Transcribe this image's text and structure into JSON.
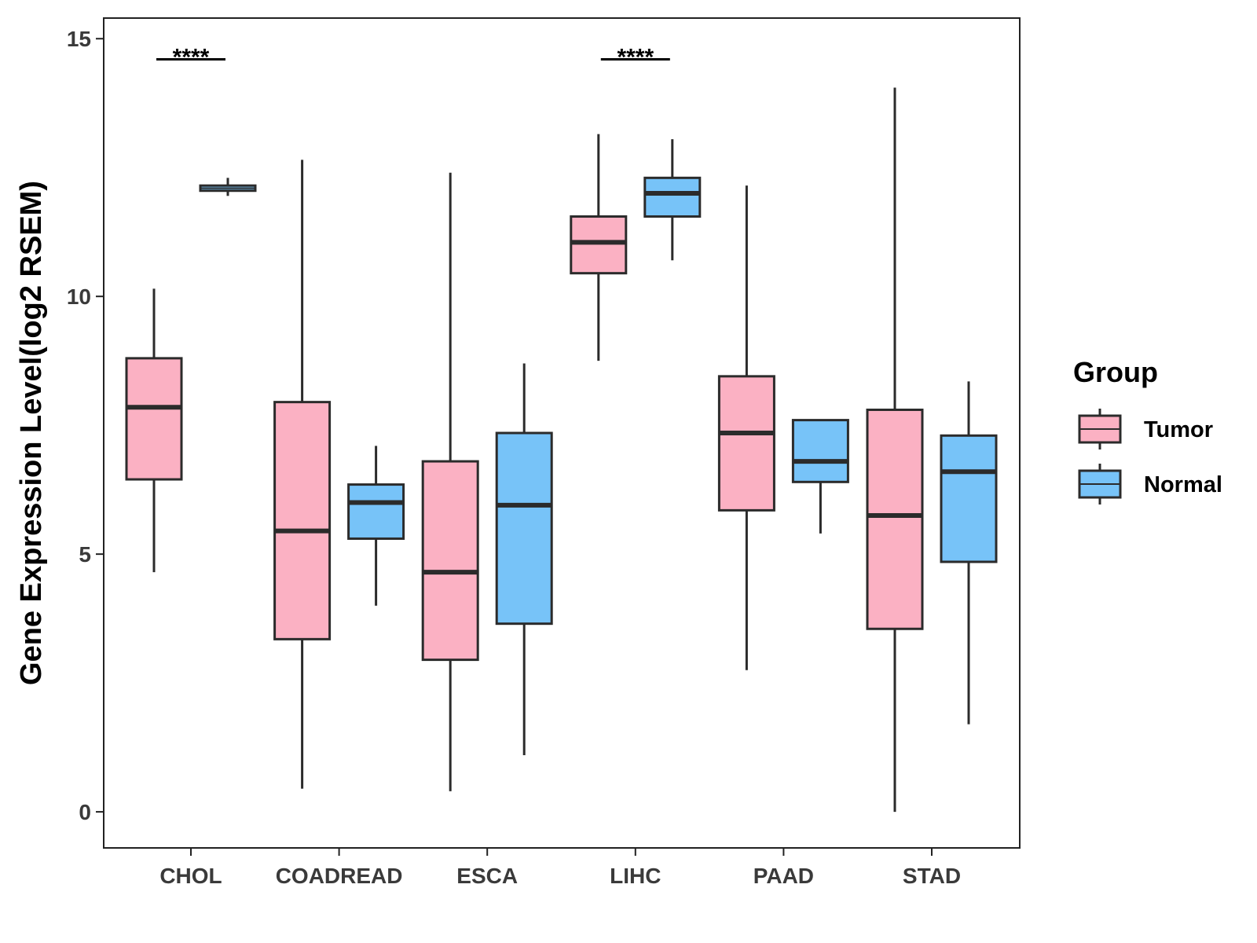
{
  "chart_data": {
    "type": "boxplot",
    "title": "",
    "xlabel": "",
    "ylabel": "Gene Expression Level(log2 RSEM)",
    "ylim": [
      -0.7,
      15.4
    ],
    "yticks": [
      0,
      5,
      10,
      15
    ],
    "grid": false,
    "legend": {
      "title": "Group",
      "placement": "right",
      "entries": [
        "Tumor",
        "Normal"
      ]
    },
    "colors": {
      "Tumor": "#fbb1c3",
      "Normal": "#77c3f8",
      "outline": "#2b2b2b"
    },
    "categories": [
      "CHOL",
      "COADREAD",
      "ESCA",
      "LIHC",
      "PAAD",
      "STAD"
    ],
    "series": [
      {
        "name": "Tumor",
        "boxes": [
          {
            "min": 4.65,
            "q1": 6.45,
            "median": 7.85,
            "q3": 8.8,
            "max": 10.15
          },
          {
            "min": 0.45,
            "q1": 3.35,
            "median": 5.45,
            "q3": 7.95,
            "max": 12.65
          },
          {
            "min": 0.4,
            "q1": 2.95,
            "median": 4.65,
            "q3": 6.8,
            "max": 12.4
          },
          {
            "min": 8.75,
            "q1": 10.45,
            "median": 11.05,
            "q3": 11.55,
            "max": 13.15
          },
          {
            "min": 2.75,
            "q1": 5.85,
            "median": 7.35,
            "q3": 8.45,
            "max": 12.15
          },
          {
            "min": 0.0,
            "q1": 3.55,
            "median": 5.75,
            "q3": 7.8,
            "max": 14.05
          }
        ]
      },
      {
        "name": "Normal",
        "boxes": [
          {
            "min": 11.95,
            "q1": 12.05,
            "median": 12.1,
            "q3": 12.15,
            "max": 12.3
          },
          {
            "min": 4.0,
            "q1": 5.3,
            "median": 6.0,
            "q3": 6.35,
            "max": 7.1
          },
          {
            "min": 1.1,
            "q1": 3.65,
            "median": 5.95,
            "q3": 7.35,
            "max": 8.7
          },
          {
            "min": 10.7,
            "q1": 11.55,
            "median": 12.0,
            "q3": 12.3,
            "max": 13.05
          },
          {
            "min": 5.4,
            "q1": 6.4,
            "median": 6.8,
            "q3": 7.6,
            "max": 7.6
          },
          {
            "min": 1.7,
            "q1": 4.85,
            "median": 6.6,
            "q3": 7.3,
            "max": 8.35
          }
        ]
      }
    ],
    "annotations": [
      {
        "category": "CHOL",
        "text": "****",
        "y": 14.6
      },
      {
        "category": "LIHC",
        "text": "****",
        "y": 14.6
      }
    ]
  }
}
